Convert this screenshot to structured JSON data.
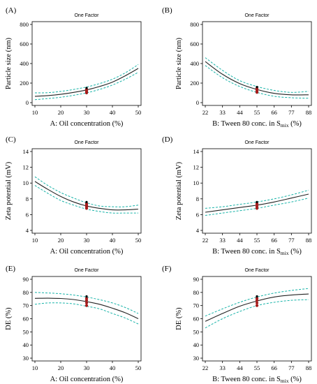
{
  "chart_data": [
    {
      "type": "line",
      "panel_label": "(A)",
      "title": "One Factor",
      "xlabel": "A: Oil concentration (%)",
      "ylabel": "Particle size (nm)",
      "xlim": [
        10,
        50
      ],
      "ylim": [
        0,
        800
      ],
      "xticks": [
        10,
        20,
        30,
        40,
        50
      ],
      "yticks": [
        0,
        200,
        400,
        600,
        800
      ],
      "x": [
        10,
        15,
        20,
        25,
        30,
        35,
        40,
        45,
        50
      ],
      "series": [
        {
          "role": "upper",
          "values": [
            100,
            102,
            115,
            135,
            160,
            195,
            240,
            305,
            390
          ]
        },
        {
          "role": "fit",
          "values": [
            65,
            72,
            85,
            105,
            130,
            165,
            210,
            275,
            350
          ]
        },
        {
          "role": "lower",
          "values": [
            30,
            42,
            55,
            75,
            100,
            135,
            180,
            240,
            310
          ]
        }
      ],
      "points": {
        "x": 30,
        "y": [
          100,
          110,
          120,
          135,
          150
        ]
      },
      "grid": false
    },
    {
      "type": "line",
      "panel_label": "(B)",
      "title": "One Factor",
      "xlabel": "B: Tween 80 conc. in S",
      "xlabel_sub": "mix",
      "xlabel_end": " (%)",
      "ylabel": "Particle size (nm)",
      "xlim": [
        22,
        88
      ],
      "ylim": [
        0,
        800
      ],
      "xticks": [
        22,
        33,
        44,
        55,
        66,
        77,
        88
      ],
      "yticks": [
        0,
        200,
        400,
        600,
        800
      ],
      "x": [
        22,
        33,
        44,
        55,
        66,
        77,
        88
      ],
      "series": [
        {
          "role": "upper",
          "values": [
            460,
            330,
            225,
            165,
            125,
            105,
            115
          ]
        },
        {
          "role": "fit",
          "values": [
            420,
            290,
            195,
            135,
            95,
            80,
            80
          ]
        },
        {
          "role": "lower",
          "values": [
            380,
            255,
            165,
            105,
            65,
            50,
            45
          ]
        }
      ],
      "points": {
        "x": 55,
        "y": [
          105,
          115,
          130,
          145,
          160
        ]
      },
      "grid": false
    },
    {
      "type": "line",
      "panel_label": "(C)",
      "title": "One Factor",
      "xlabel": "A: Oil concentration (%)",
      "ylabel": "Zeta potential (mV)",
      "xlim": [
        10,
        50
      ],
      "ylim": [
        4,
        14
      ],
      "xticks": [
        10,
        20,
        30,
        40,
        50
      ],
      "yticks": [
        4,
        6,
        8,
        10,
        12,
        14
      ],
      "x": [
        10,
        15,
        20,
        25,
        30,
        35,
        40,
        45,
        50
      ],
      "series": [
        {
          "role": "upper",
          "values": [
            10.8,
            9.7,
            8.8,
            8.1,
            7.5,
            7.1,
            7.0,
            7.0,
            7.2
          ]
        },
        {
          "role": "fit",
          "values": [
            10.2,
            9.2,
            8.3,
            7.6,
            7.1,
            6.8,
            6.6,
            6.6,
            6.7
          ]
        },
        {
          "role": "lower",
          "values": [
            9.7,
            8.7,
            7.8,
            7.2,
            6.7,
            6.4,
            6.2,
            6.2,
            6.2
          ]
        }
      ],
      "points": {
        "x": 30,
        "y": [
          6.8,
          7.0,
          7.2,
          7.4,
          7.6
        ]
      },
      "grid": false
    },
    {
      "type": "line",
      "panel_label": "(D)",
      "title": "One Factor",
      "xlabel": "B: Tween 80 conc. in S",
      "xlabel_sub": "mix",
      "xlabel_end": " (%)",
      "ylabel": "Zeta potential (mV)",
      "xlim": [
        22,
        88
      ],
      "ylim": [
        4,
        14
      ],
      "xticks": [
        22,
        33,
        44,
        55,
        66,
        77,
        88
      ],
      "yticks": [
        4,
        6,
        8,
        10,
        12,
        14
      ],
      "x": [
        22,
        33,
        44,
        55,
        66,
        77,
        88
      ],
      "series": [
        {
          "role": "upper",
          "values": [
            6.8,
            7.0,
            7.3,
            7.6,
            8.0,
            8.5,
            9.1
          ]
        },
        {
          "role": "fit",
          "values": [
            6.3,
            6.6,
            6.9,
            7.2,
            7.6,
            8.1,
            8.6
          ]
        },
        {
          "role": "lower",
          "values": [
            5.9,
            6.2,
            6.5,
            6.8,
            7.2,
            7.6,
            8.1
          ]
        }
      ],
      "points": {
        "x": 55,
        "y": [
          6.8,
          7.0,
          7.2,
          7.4,
          7.6
        ]
      },
      "grid": false
    },
    {
      "type": "line",
      "panel_label": "(E)",
      "title": "One Factor",
      "xlabel": "A: Oil concentration (%)",
      "ylabel": "DE (%)",
      "xlim": [
        10,
        50
      ],
      "ylim": [
        30,
        90
      ],
      "xticks": [
        10,
        20,
        30,
        40,
        50
      ],
      "yticks": [
        30,
        40,
        50,
        60,
        70,
        80,
        90
      ],
      "x": [
        10,
        15,
        20,
        25,
        30,
        35,
        40,
        45,
        50
      ],
      "series": [
        {
          "role": "upper",
          "values": [
            80,
            79.6,
            79,
            78,
            76.5,
            74.5,
            72,
            68.5,
            64
          ]
        },
        {
          "role": "fit",
          "values": [
            75.5,
            75.6,
            75.4,
            74.6,
            73,
            71,
            68,
            64.5,
            60
          ]
        },
        {
          "role": "lower",
          "values": [
            71,
            72,
            72,
            71.3,
            69.5,
            67.5,
            64,
            60.5,
            56
          ]
        }
      ],
      "points": {
        "x": 30,
        "y": [
          70,
          72,
          74,
          75.5,
          77
        ]
      },
      "grid": false
    },
    {
      "type": "line",
      "panel_label": "(F)",
      "title": "One Factor",
      "xlabel": "B: Tween 80 conc. in S",
      "xlabel_sub": "mix",
      "xlabel_end": " (%)",
      "ylabel": "DE (%)",
      "xlim": [
        22,
        88
      ],
      "ylim": [
        30,
        90
      ],
      "xticks": [
        22,
        33,
        44,
        55,
        66,
        77,
        88
      ],
      "yticks": [
        30,
        40,
        50,
        60,
        70,
        80,
        90
      ],
      "x": [
        22,
        33,
        44,
        55,
        66,
        77,
        88
      ],
      "series": [
        {
          "role": "upper",
          "values": [
            62,
            67.5,
            72.5,
            76.5,
            79.5,
            81.5,
            83
          ]
        },
        {
          "role": "fit",
          "values": [
            58,
            64,
            69.5,
            73.5,
            76.5,
            78,
            78.8
          ]
        },
        {
          "role": "lower",
          "values": [
            53,
            60,
            65.5,
            70,
            72.5,
            74,
            74.5
          ]
        }
      ],
      "points": {
        "x": 55,
        "y": [
          70,
          72,
          74,
          75.5,
          77
        ]
      },
      "grid": false
    }
  ],
  "colors": {
    "fit": "#222222",
    "band": "#17b3a8",
    "points": "#a51c1c"
  }
}
